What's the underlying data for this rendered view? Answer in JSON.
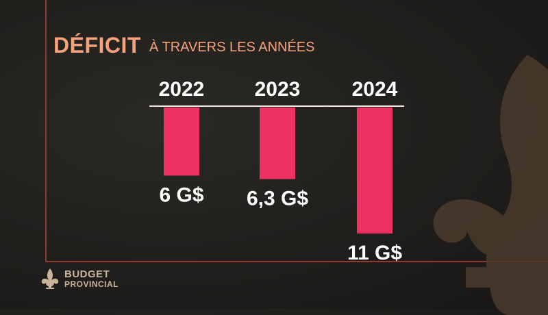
{
  "header": {
    "title": "DÉFICIT",
    "subtitle": "À TRAVERS LES ANNÉES"
  },
  "brand": {
    "line1": "BUDGET",
    "line2": "PROVINCIAL",
    "icon": "fleur-de-lis-icon"
  },
  "colors": {
    "bar": "#ee3160",
    "accent": "#f5a37a",
    "frame": "#8e3a30",
    "background": "#211f1c"
  },
  "chart_data": {
    "type": "bar",
    "categories": [
      "2022",
      "2023",
      "2024"
    ],
    "values": [
      6,
      6.3,
      11
    ],
    "value_labels": [
      "6 G$",
      "6,3 G$",
      "11 G$"
    ],
    "direction": "downward",
    "ylim": [
      0,
      11
    ]
  }
}
